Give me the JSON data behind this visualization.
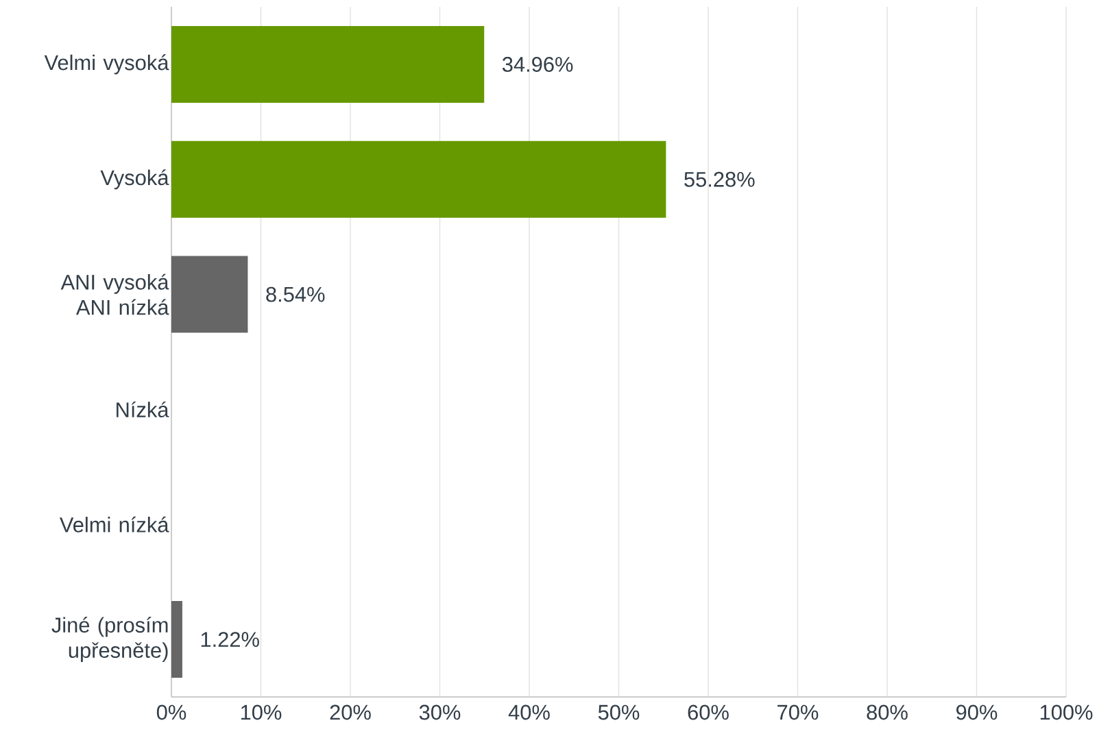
{
  "chart_data": {
    "type": "bar",
    "orientation": "horizontal",
    "categories": [
      "Velmi vysoká",
      "Vysoká",
      "ANI vysoká ANI nízká",
      "Nízká",
      "Velmi nízká",
      "Jiné (prosím upřesněte)"
    ],
    "values": [
      34.96,
      55.28,
      8.54,
      0,
      0,
      1.22
    ],
    "colors": [
      "#669900",
      "#669900",
      "#666666",
      "#666666",
      "#666666",
      "#666666"
    ],
    "value_labels": [
      "34.96%",
      "55.28%",
      "8.54%",
      null,
      null,
      "1.22%"
    ],
    "xlim": [
      0,
      100
    ],
    "xticks": [
      {
        "value": 0,
        "label": "0%"
      },
      {
        "value": 10,
        "label": "10%"
      },
      {
        "value": 20,
        "label": "20%"
      },
      {
        "value": 30,
        "label": "30%"
      },
      {
        "value": 40,
        "label": "40%"
      },
      {
        "value": 50,
        "label": "50%"
      },
      {
        "value": 60,
        "label": "60%"
      },
      {
        "value": 70,
        "label": "70%"
      },
      {
        "value": 80,
        "label": "80%"
      },
      {
        "value": 90,
        "label": "90%"
      },
      {
        "value": 100,
        "label": "100%"
      }
    ],
    "grid": "x"
  }
}
